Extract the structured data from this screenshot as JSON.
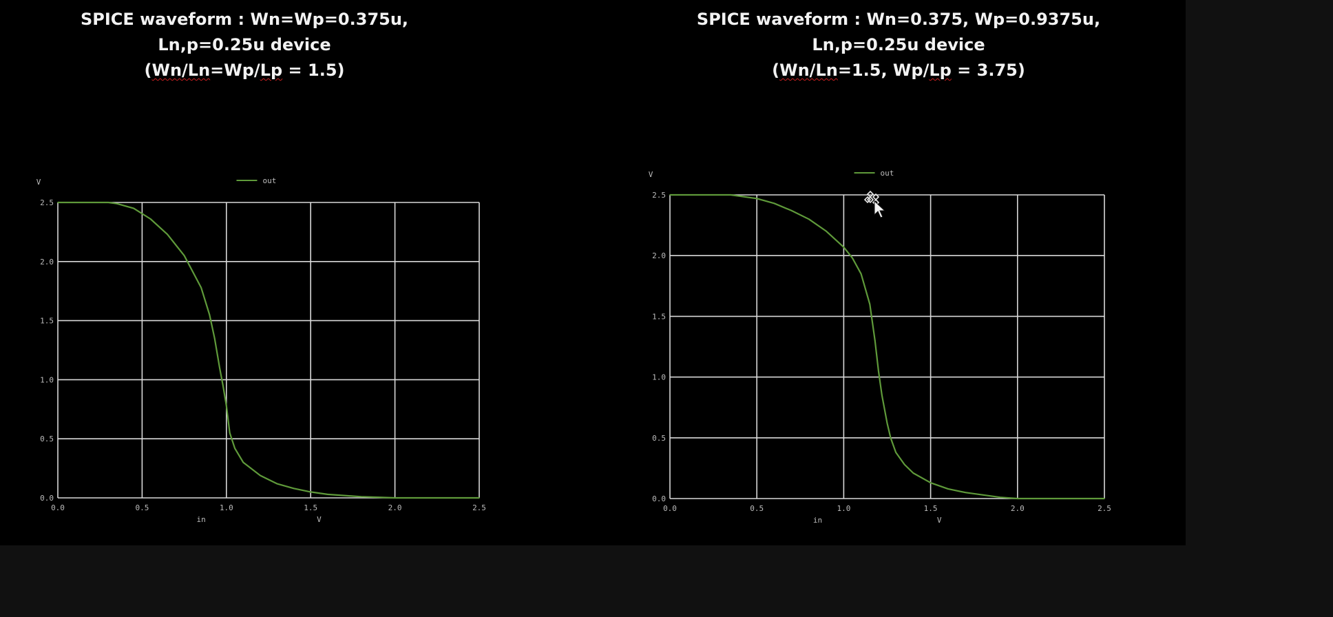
{
  "colors": {
    "background": "#000000",
    "outer_background": "#111111",
    "grid": "#d9d9d9",
    "curve": "#5f9a3a",
    "text": "#f2f2f2",
    "tick_text": "#bdbdbd",
    "squiggle": "#c82020"
  },
  "panels": [
    {
      "title_lines": [
        "SPICE waveform : Wn=Wp=0.375u,",
        "Ln,p=0.25u device"
      ],
      "title_ratio": {
        "open": "(",
        "u1": "Wn/Ln",
        "mid1": "=Wp/",
        "u2": "Lp",
        "rest": " = 1.5)"
      }
    },
    {
      "title_lines": [
        "SPICE waveform : Wn=0.375, Wp=0.9375u,",
        "Ln,p=0.25u device"
      ],
      "title_ratio": {
        "open": "(",
        "u1": "Wn/Ln",
        "mid1": "=1.5, Wp/",
        "u2": "Lp",
        "rest": " = 3.75)"
      }
    }
  ],
  "cursor_icon": "move-cursor-icon",
  "chart_data": [
    {
      "type": "line",
      "title": "",
      "xlabel": "in",
      "xunit": "V",
      "ylabel": "V",
      "xlim": [
        0,
        2.5
      ],
      "ylim": [
        0,
        2.5
      ],
      "xticks": [
        "0.0",
        "0.5",
        "1.0",
        "1.5",
        "2.0",
        "2.5"
      ],
      "yticks": [
        "0.0",
        "0.5",
        "1.0",
        "1.5",
        "2.0",
        "2.5"
      ],
      "grid": true,
      "legend": "top-center",
      "series": [
        {
          "name": "out",
          "x": [
            0.0,
            0.3,
            0.35,
            0.45,
            0.55,
            0.65,
            0.75,
            0.85,
            0.9,
            0.93,
            0.96,
            0.98,
            1.0,
            1.02,
            1.05,
            1.1,
            1.2,
            1.3,
            1.4,
            1.5,
            1.6,
            1.7,
            1.8,
            1.9,
            2.0,
            2.5
          ],
          "y": [
            2.5,
            2.5,
            2.49,
            2.45,
            2.36,
            2.23,
            2.05,
            1.78,
            1.55,
            1.35,
            1.1,
            0.95,
            0.78,
            0.55,
            0.42,
            0.3,
            0.19,
            0.12,
            0.08,
            0.05,
            0.03,
            0.02,
            0.01,
            0.005,
            0.0,
            0.0
          ]
        }
      ]
    },
    {
      "type": "line",
      "title": "",
      "xlabel": "in",
      "xunit": "V",
      "ylabel": "V",
      "xlim": [
        0,
        2.5
      ],
      "ylim": [
        0,
        2.5
      ],
      "xticks": [
        "0.0",
        "0.5",
        "1.0",
        "1.5",
        "2.0",
        "2.5"
      ],
      "yticks": [
        "0.0",
        "0.5",
        "1.0",
        "1.5",
        "2.0",
        "2.5"
      ],
      "grid": true,
      "legend": "top-center",
      "series": [
        {
          "name": "out",
          "x": [
            0.0,
            0.35,
            0.5,
            0.6,
            0.7,
            0.8,
            0.9,
            1.0,
            1.05,
            1.1,
            1.15,
            1.18,
            1.2,
            1.22,
            1.25,
            1.27,
            1.3,
            1.35,
            1.4,
            1.5,
            1.6,
            1.7,
            1.8,
            1.9,
            2.0,
            2.5
          ],
          "y": [
            2.5,
            2.5,
            2.47,
            2.43,
            2.37,
            2.3,
            2.2,
            2.07,
            1.98,
            1.85,
            1.6,
            1.3,
            1.05,
            0.85,
            0.62,
            0.5,
            0.38,
            0.28,
            0.21,
            0.13,
            0.08,
            0.05,
            0.03,
            0.01,
            0.0,
            0.0
          ]
        }
      ]
    }
  ]
}
